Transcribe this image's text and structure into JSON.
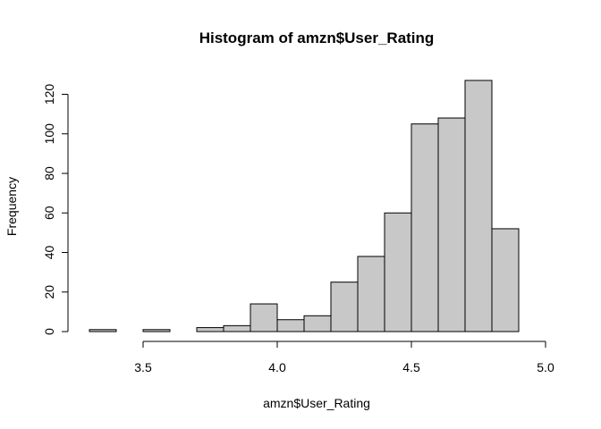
{
  "chart_data": {
    "type": "bar",
    "title": "Histogram of amzn$User_Rating",
    "xlabel": "amzn$User_Rating",
    "ylabel": "Frequency",
    "bin_edges": [
      3.3,
      3.4,
      3.5,
      3.6,
      3.7,
      3.8,
      3.9,
      4.0,
      4.1,
      4.2,
      4.3,
      4.4,
      4.5,
      4.6,
      4.7,
      4.8,
      4.9,
      5.0
    ],
    "values": [
      1,
      0,
      1,
      0,
      2,
      3,
      14,
      6,
      8,
      25,
      38,
      60,
      105,
      108,
      127,
      52,
      0
    ],
    "xlim": [
      3.3,
      5.0
    ],
    "ylim": [
      0,
      127
    ],
    "x_ticks": [
      3.5,
      4.0,
      4.5,
      5.0
    ],
    "x_tick_labels": [
      "3.5",
      "4.0",
      "4.5",
      "5.0"
    ],
    "y_ticks": [
      0,
      20,
      40,
      60,
      80,
      100,
      120
    ],
    "y_tick_labels": [
      "0",
      "20",
      "40",
      "60",
      "80",
      "100",
      "120"
    ],
    "grid": false,
    "legend": "none",
    "colors": {
      "bar_fill": "#c8c8c8",
      "bar_stroke": "#000000",
      "background": "#ffffff"
    }
  }
}
